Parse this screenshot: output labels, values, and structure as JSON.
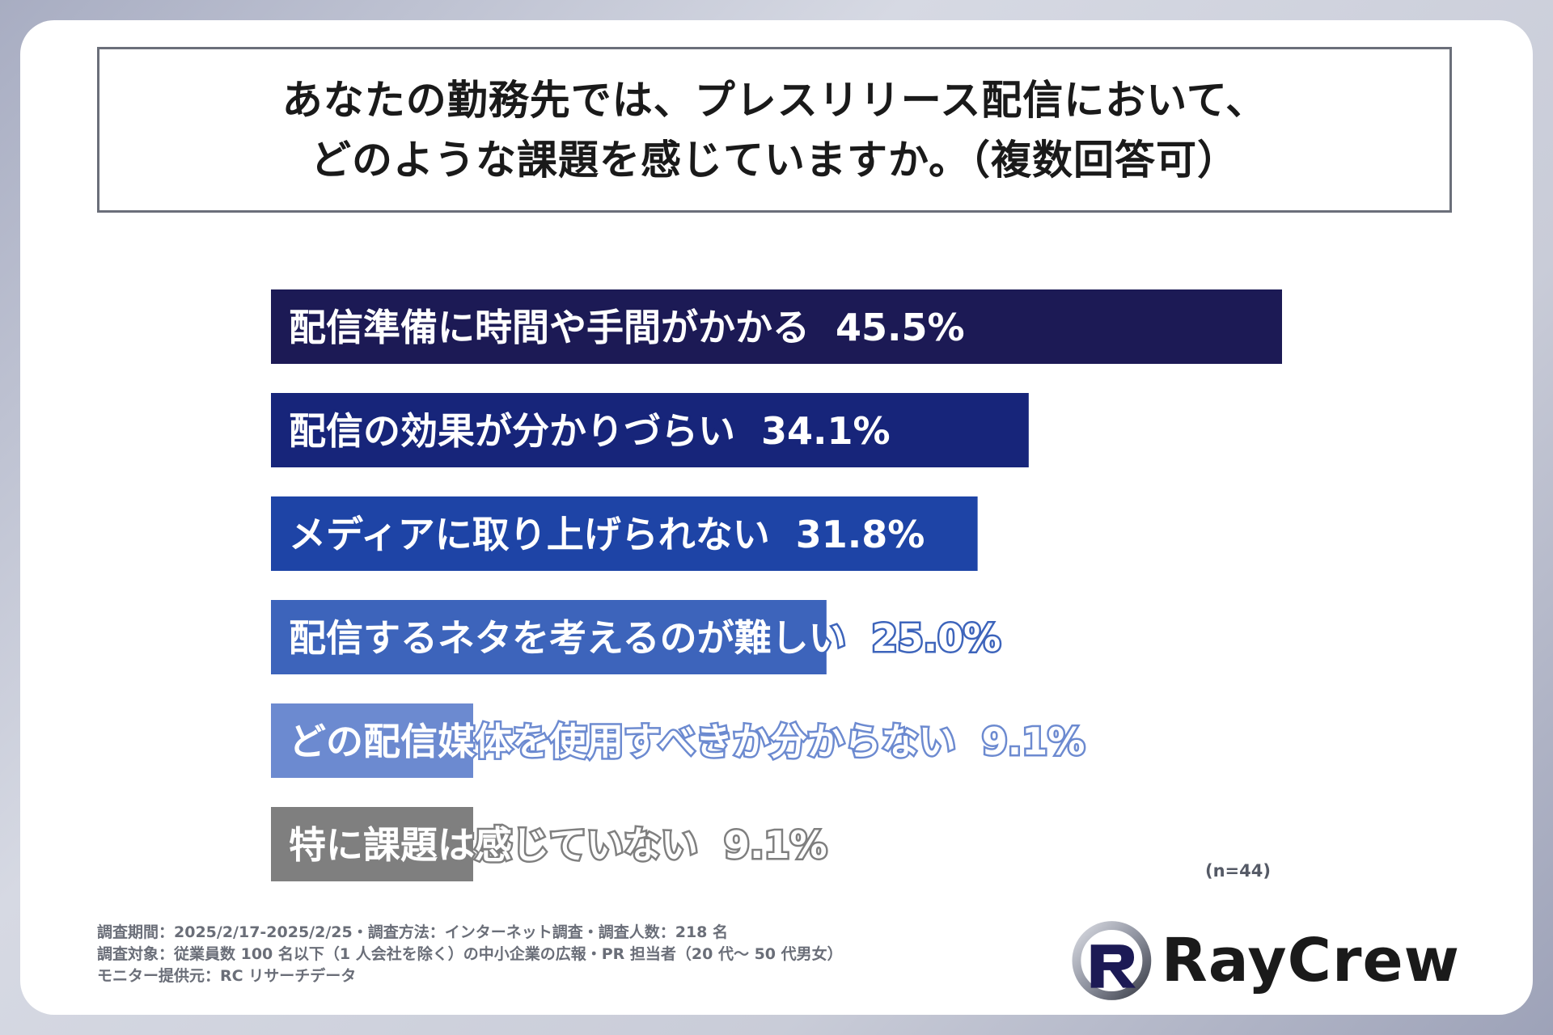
{
  "title": {
    "line1": "あなたの勤務先では、プレスリリース配信において、",
    "line2": "どのような課題を感じていますか。（複数回答可）"
  },
  "chart_data": {
    "type": "bar",
    "orientation": "horizontal",
    "categories": [
      "配信準備に時間や手間がかかる",
      "配信の効果が分かりづらい",
      "メディアに取り上げられない",
      "配信するネタを考えるのが難しい",
      "どの配信媒体を使用すべきか分からない",
      "特に課題は感じていない"
    ],
    "values": [
      45.5,
      34.1,
      31.8,
      25.0,
      9.1,
      9.1
    ],
    "value_labels": [
      "45.5%",
      "34.1%",
      "31.8%",
      "25.0%",
      "9.1%",
      "9.1%"
    ],
    "colors": [
      "#1c1a55",
      "#17257a",
      "#1e44a6",
      "#3d64bb",
      "#6c8ad0",
      "#7f7f7f"
    ],
    "xlim": [
      0,
      45.5
    ],
    "grid": false,
    "legend": "none"
  },
  "sample_size": "(n=44)",
  "footnote": {
    "line1": "調査期間：2025/2/17-2025/2/25・調査方法：インターネット調査・調査人数：218 名",
    "line2": "調査対象：従業員数 100 名以下（1 人会社を除く）の中小企業の広報・PR 担当者（20 代～ 50 代男女）",
    "line3": "モニター提供元：RC リサーチデータ"
  },
  "logo": {
    "text": "RayCrew"
  }
}
